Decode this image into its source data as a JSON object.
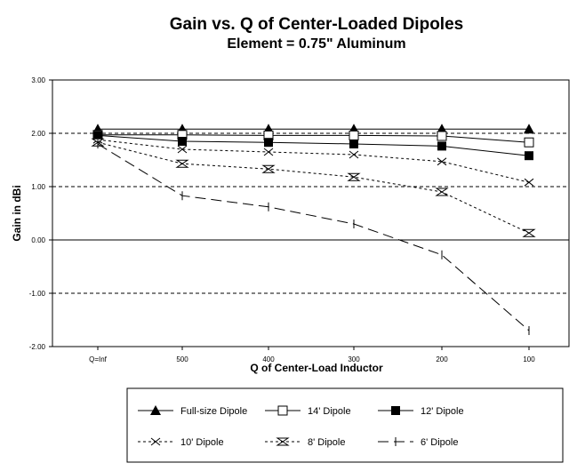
{
  "chart_data": {
    "type": "line",
    "title": "Gain vs. Q of Center-Loaded Dipoles",
    "subtitle": "Element = 0.75\" Aluminum",
    "xlabel": "Q of Center-Load Inductor",
    "ylabel": "Gain in dBi",
    "categories": [
      "Q=Inf",
      "500",
      "400",
      "300",
      "200",
      "100"
    ],
    "ylim": [
      -2,
      3
    ],
    "yticks": [
      "3.00",
      "2.00",
      "1.00",
      "0.00",
      "-1.00",
      "-2.00"
    ],
    "yticks_values": [
      3,
      2,
      1,
      0,
      -1,
      -2
    ],
    "legend_position": "bottom",
    "series": [
      {
        "name": "Full-size Dipole",
        "marker": "triangle",
        "dash": "solid",
        "values": [
          2.08,
          2.08,
          2.08,
          2.08,
          2.08,
          2.08
        ]
      },
      {
        "name": "14' Dipole",
        "marker": "open-square",
        "dash": "solid",
        "values": [
          1.97,
          1.97,
          1.96,
          1.96,
          1.95,
          1.83
        ]
      },
      {
        "name": "12' Dipole",
        "marker": "filled-square",
        "dash": "solid",
        "values": [
          1.96,
          1.85,
          1.83,
          1.8,
          1.76,
          1.58
        ]
      },
      {
        "name": "10' Dipole",
        "marker": "x",
        "dash": "short",
        "values": [
          1.88,
          1.7,
          1.65,
          1.6,
          1.47,
          1.08
        ]
      },
      {
        "name": "8' Dipole",
        "marker": "hourglass",
        "dash": "short",
        "values": [
          1.83,
          1.43,
          1.33,
          1.18,
          0.9,
          0.13
        ]
      },
      {
        "name": "6' Dipole",
        "marker": "bar",
        "dash": "long",
        "values": [
          1.8,
          0.83,
          0.62,
          0.3,
          -0.28,
          -1.7
        ]
      }
    ]
  }
}
